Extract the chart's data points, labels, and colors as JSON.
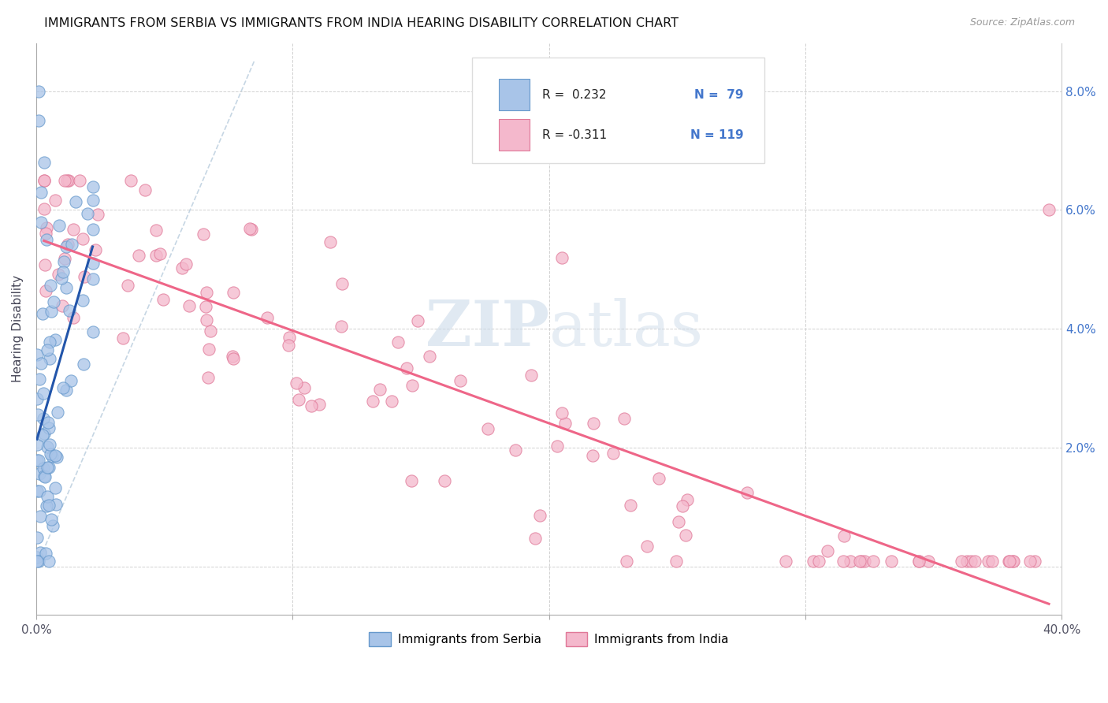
{
  "title": "IMMIGRANTS FROM SERBIA VS IMMIGRANTS FROM INDIA HEARING DISABILITY CORRELATION CHART",
  "source": "Source: ZipAtlas.com",
  "ylabel": "Hearing Disability",
  "ytick_labels": [
    "",
    "2.0%",
    "4.0%",
    "6.0%",
    "8.0%"
  ],
  "xlim": [
    0.0,
    0.4
  ],
  "ylim": [
    -0.008,
    0.088
  ],
  "serbia_color": "#a8c4e8",
  "serbia_edge": "#6699cc",
  "india_color": "#f4b8cc",
  "india_edge": "#e07898",
  "serbia_line_color": "#2255aa",
  "india_line_color": "#ee6688",
  "diagonal_color": "#b8ccdd",
  "watermark_color": "#ccd8e4",
  "serbia_R": 0.232,
  "serbia_N": 79,
  "india_R": -0.311,
  "india_N": 119
}
